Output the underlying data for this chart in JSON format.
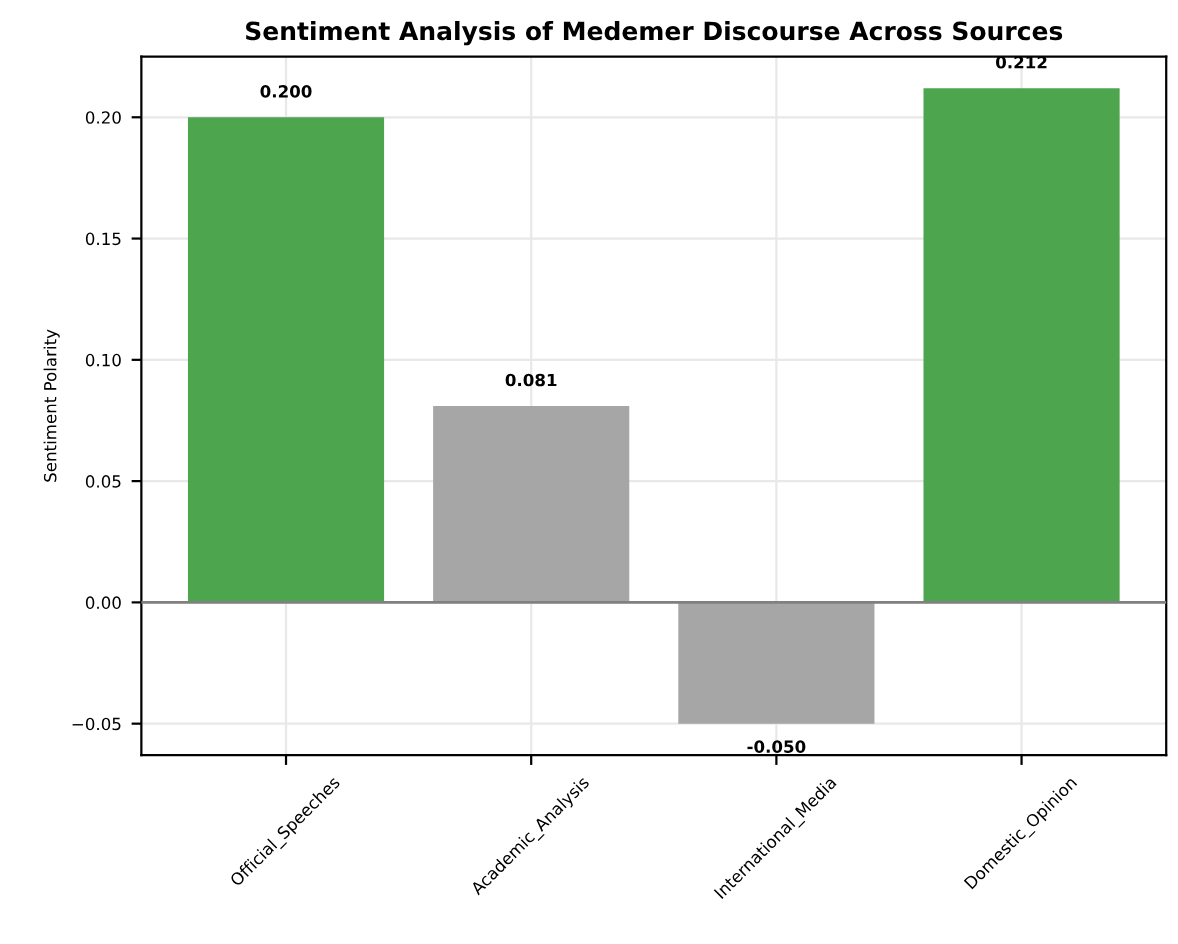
{
  "chart_data": {
    "type": "bar",
    "title": "Sentiment Analysis of Medemer Discourse Across Sources",
    "ylabel": "Sentiment Polarity",
    "categories": [
      "Official_Speeches",
      "Academic_Analysis",
      "International_Media",
      "Domestic_Opinion"
    ],
    "values": [
      0.2,
      0.081,
      -0.05,
      0.212
    ],
    "colors": [
      "#4da64d",
      "#a6a6a6",
      "#a6a6a6",
      "#4da64d"
    ],
    "value_labels": [
      "0.200",
      "0.081",
      "-0.050",
      "0.212"
    ],
    "ylim": [
      -0.063,
      0.225
    ],
    "yticks": [
      {
        "value": -0.05,
        "label": "−0.05"
      },
      {
        "value": 0.0,
        "label": "0.00"
      },
      {
        "value": 0.05,
        "label": "0.05"
      },
      {
        "value": 0.1,
        "label": "0.10"
      },
      {
        "value": 0.15,
        "label": "0.15"
      },
      {
        "value": 0.2,
        "label": "0.20"
      }
    ],
    "ref_lines": [
      {
        "axis": "y",
        "value": 0,
        "color": "#808080",
        "line_style": "solid"
      }
    ],
    "grid": true
  }
}
